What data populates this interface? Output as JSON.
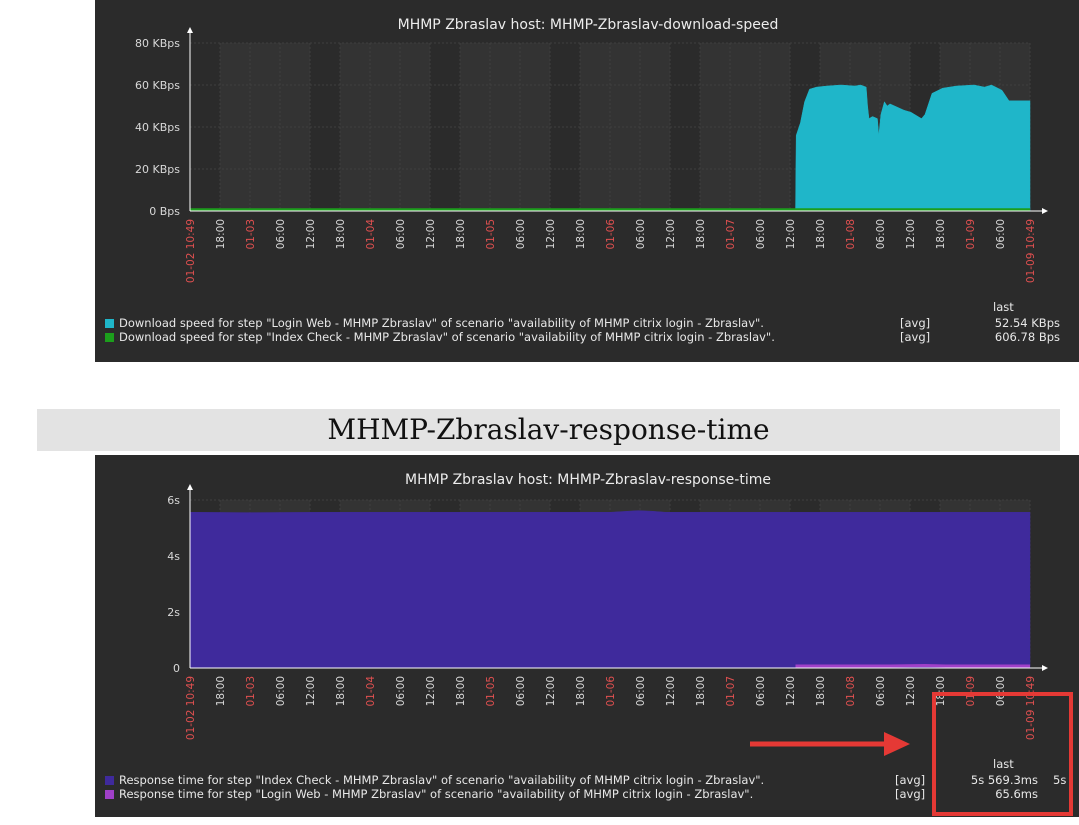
{
  "section_title": "MHMP-Zbraslav-response-time",
  "colors": {
    "panel_bg": "#2b2b2b",
    "highlight": "#e53935",
    "grid": "#4a4a4a",
    "date_label": "#e05050"
  },
  "charts": [
    {
      "title": "MHMP Zbraslav host: MHMP-Zbraslav-download-speed",
      "y_ticks": [
        "80 KBps",
        "60 KBps",
        "40 KBps",
        "20 KBps",
        "0 Bps"
      ],
      "legend_last_header": "last",
      "legend": [
        {
          "color": "#1fb6c9",
          "text": "Download speed for step \"Login Web - MHMP Zbraslav\" of scenario \"availability of MHMP citrix login - Zbraslav\".",
          "fn": "[avg]",
          "last": "52.54 KBps"
        },
        {
          "color": "#1c9e1c",
          "text": "Download speed for step \"Index Check - MHMP Zbraslav\" of scenario \"availability of MHMP citrix login - Zbraslav\".",
          "fn": "[avg]",
          "last": "606.78 Bps"
        }
      ]
    },
    {
      "title": "MHMP Zbraslav host: MHMP-Zbraslav-response-time",
      "y_ticks": [
        "6s",
        "4s",
        "2s",
        "0"
      ],
      "legend_last_header": "last",
      "legend": [
        {
          "color": "#3f2a9c",
          "text": "Response time for step \"Index Check - MHMP Zbraslav\" of scenario \"availability of MHMP citrix login - Zbraslav\".",
          "fn": "[avg]",
          "last": "5s 569.3ms"
        },
        {
          "color": "#a040c8",
          "text": "Response time for step \"Login Web - MHMP Zbraslav\" of scenario \"availability of MHMP citrix login - Zbraslav\".",
          "fn": "[avg]",
          "last": "65.6ms"
        }
      ],
      "overflow_text": "5s"
    }
  ],
  "chart_data": [
    {
      "type": "area",
      "title": "MHMP Zbraslav host: MHMP-Zbraslav-download-speed",
      "y_unit": "KBps",
      "ylim": [
        0,
        80
      ],
      "x_labels": [
        "01-02 10:49",
        "18:00",
        "01-03",
        "06:00",
        "12:00",
        "18:00",
        "01-04",
        "06:00",
        "12:00",
        "18:00",
        "01-05",
        "06:00",
        "12:00",
        "18:00",
        "01-06",
        "06:00",
        "12:00",
        "18:00",
        "01-07",
        "06:00",
        "12:00",
        "18:00",
        "01-08",
        "06:00",
        "12:00",
        "18:00",
        "01-09",
        "06:00",
        "01-09 10:49"
      ],
      "x_label_colors": [
        "red",
        "white",
        "red",
        "white",
        "white",
        "white",
        "red",
        "white",
        "white",
        "white",
        "red",
        "white",
        "white",
        "white",
        "red",
        "white",
        "white",
        "white",
        "red",
        "white",
        "white",
        "white",
        "red",
        "white",
        "white",
        "white",
        "red",
        "white",
        "red"
      ],
      "series": [
        {
          "name": "Download speed for step \"Login Web - MHMP Zbraslav\" of scenario \"availability of MHMP citrix login - Zbraslav\".",
          "color": "#1fb6c9",
          "points": [
            [
              0.865,
              0
            ],
            [
              0.866,
              36
            ],
            [
              0.872,
              42
            ],
            [
              0.878,
              52
            ],
            [
              0.885,
              58
            ],
            [
              0.895,
              59
            ],
            [
              0.91,
              59.5
            ],
            [
              0.93,
              60
            ],
            [
              0.95,
              59.5
            ],
            [
              0.958,
              60
            ],
            [
              0.966,
              59
            ],
            [
              0.968,
              50
            ],
            [
              0.97,
              44
            ],
            [
              0.975,
              45
            ],
            [
              0.982,
              44
            ],
            [
              0.984,
              36
            ],
            [
              0.987,
              46
            ],
            [
              0.992,
              52
            ],
            [
              0.996,
              50
            ],
            [
              1.0,
              51
            ],
            [
              1.02,
              48
            ],
            [
              1.03,
              47
            ],
            [
              1.04,
              45
            ],
            [
              1.045,
              44
            ],
            [
              1.05,
              46
            ],
            [
              1.06,
              56
            ],
            [
              1.075,
              58.5
            ],
            [
              1.095,
              59.5
            ],
            [
              1.12,
              60
            ],
            [
              1.135,
              59
            ],
            [
              1.145,
              60
            ],
            [
              1.16,
              57.5
            ],
            [
              1.17,
              52.5
            ],
            [
              1.2,
              52.5
            ]
          ]
        },
        {
          "name": "Download speed for step \"Index Check - MHMP Zbraslav\" of scenario \"availability of MHMP citrix login - Zbraslav\".",
          "color": "#1c9e1c",
          "points": [
            [
              0,
              0.6
            ],
            [
              1.2,
              0.6
            ]
          ]
        }
      ]
    },
    {
      "type": "area",
      "title": "MHMP Zbraslav host: MHMP-Zbraslav-response-time",
      "y_unit": "s",
      "ylim": [
        0,
        6
      ],
      "x_labels": [
        "01-02 10:49",
        "18:00",
        "01-03",
        "06:00",
        "12:00",
        "18:00",
        "01-04",
        "06:00",
        "12:00",
        "18:00",
        "01-05",
        "06:00",
        "12:00",
        "18:00",
        "01-06",
        "06:00",
        "12:00",
        "18:00",
        "01-07",
        "06:00",
        "12:00",
        "18:00",
        "01-08",
        "06:00",
        "12:00",
        "18:00",
        "01-09",
        "06:00",
        "01-09 10:49"
      ],
      "x_label_colors": [
        "red",
        "white",
        "red",
        "white",
        "white",
        "white",
        "red",
        "white",
        "white",
        "white",
        "red",
        "white",
        "white",
        "white",
        "red",
        "white",
        "white",
        "white",
        "red",
        "white",
        "white",
        "white",
        "red",
        "white",
        "white",
        "white",
        "red",
        "white",
        "red"
      ],
      "series": [
        {
          "name": "Response time for step \"Index Check - MHMP Zbraslav\" of scenario \"availability of MHMP citrix login - Zbraslav\".",
          "color": "#3f2a9c",
          "points": [
            [
              0,
              5.56
            ],
            [
              0.08,
              5.55
            ],
            [
              0.2,
              5.56
            ],
            [
              0.4,
              5.56
            ],
            [
              0.6,
              5.56
            ],
            [
              0.64,
              5.62
            ],
            [
              0.66,
              5.6
            ],
            [
              0.68,
              5.56
            ],
            [
              0.8,
              5.56
            ],
            [
              1.0,
              5.56
            ],
            [
              1.2,
              5.56
            ]
          ]
        },
        {
          "name": "Response time for step \"Login Web - MHMP Zbraslav\" of scenario \"availability of MHMP citrix login - Zbraslav\".",
          "color": "#a040c8",
          "points": [
            [
              0.865,
              0.07
            ],
            [
              0.95,
              0.07
            ],
            [
              1.0,
              0.07
            ],
            [
              1.05,
              0.09
            ],
            [
              1.08,
              0.07
            ],
            [
              1.2,
              0.07
            ]
          ]
        }
      ]
    }
  ]
}
